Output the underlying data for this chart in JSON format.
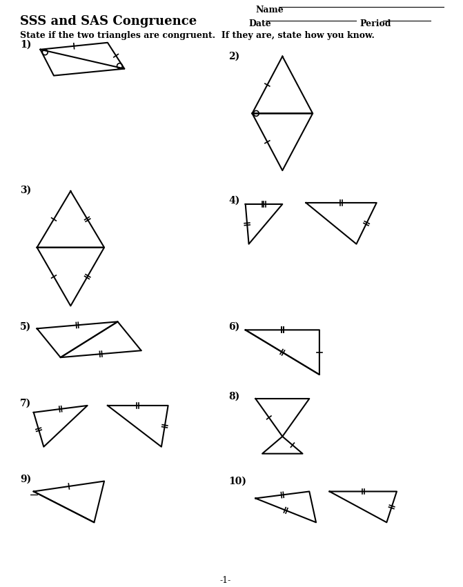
{
  "title": "SSS and SAS Congruence",
  "subtitle": "State if the two triangles are congruent.  If they are, state how you know.",
  "name_line": "Name",
  "date_line": "Date",
  "period_line": "Period",
  "footer": "-1-",
  "bg_color": "#ffffff",
  "text_color": "#000000"
}
